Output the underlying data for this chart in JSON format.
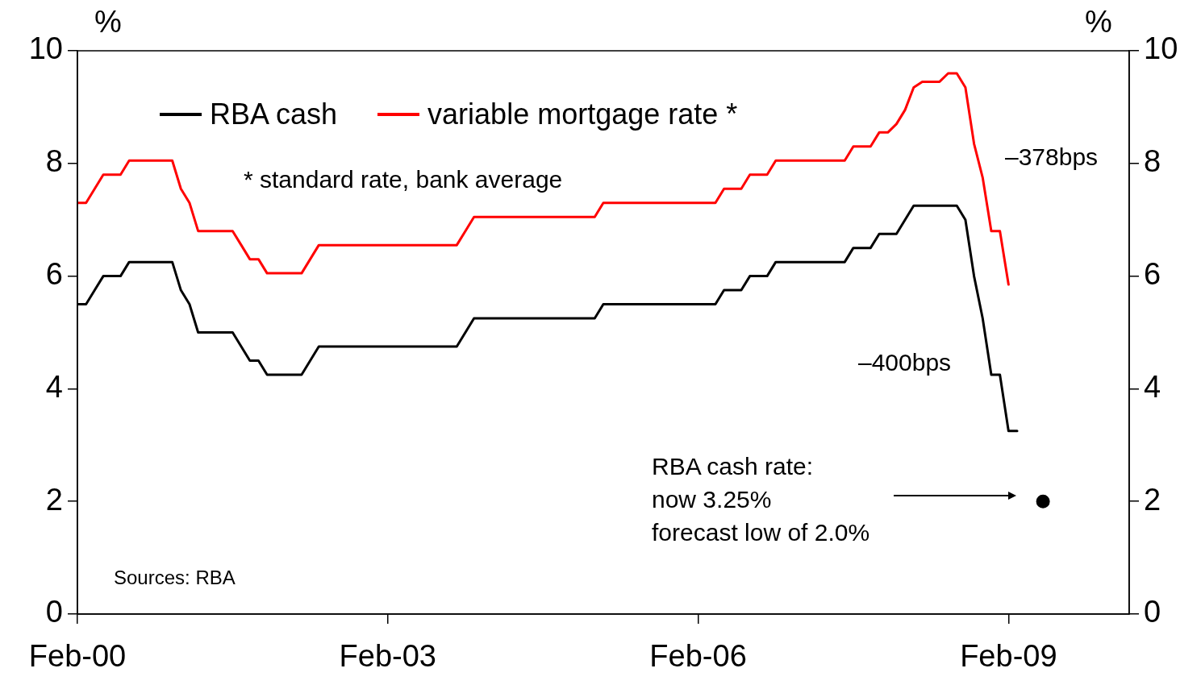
{
  "chart_data": {
    "type": "line",
    "ylabel": "%",
    "y2label": "%",
    "xlim": [
      "2000-02",
      "2010-04"
    ],
    "xticks": [
      {
        "value": "2000-02",
        "label": "Feb-00"
      },
      {
        "value": "2003-02",
        "label": "Feb-03"
      },
      {
        "value": "2006-02",
        "label": "Feb-06"
      },
      {
        "value": "2009-02",
        "label": "Feb-09"
      }
    ],
    "ylim": [
      0,
      10
    ],
    "yticks": [
      0,
      2,
      4,
      6,
      8,
      10
    ],
    "y2lim": [
      0,
      10
    ],
    "y2ticks": [
      0,
      2,
      4,
      6,
      8,
      10
    ],
    "grid": false,
    "legend": "top left",
    "line_style": "solid",
    "series": [
      {
        "name": "RBA cash",
        "color": "#000000",
        "x": [
          "2000-02",
          "2000-03",
          "2000-04",
          "2000-05",
          "2000-07",
          "2000-08",
          "2001-01",
          "2001-02",
          "2001-03",
          "2001-04",
          "2001-08",
          "2001-09",
          "2001-10",
          "2001-11",
          "2001-12",
          "2002-04",
          "2002-05",
          "2002-06",
          "2003-10",
          "2003-11",
          "2003-12",
          "2005-02",
          "2005-03",
          "2006-04",
          "2006-05",
          "2006-07",
          "2006-08",
          "2006-10",
          "2006-11",
          "2007-07",
          "2007-08",
          "2007-10",
          "2007-11",
          "2008-01",
          "2008-02",
          "2008-03",
          "2008-08",
          "2008-09",
          "2008-10",
          "2008-11",
          "2008-12",
          "2009-01",
          "2009-02",
          "2009-03"
        ],
        "values": [
          5.5,
          5.5,
          5.75,
          6.0,
          6.0,
          6.25,
          6.25,
          5.75,
          5.5,
          5.0,
          5.0,
          4.75,
          4.5,
          4.5,
          4.25,
          4.25,
          4.5,
          4.75,
          4.75,
          5.0,
          5.25,
          5.25,
          5.5,
          5.5,
          5.75,
          5.75,
          6.0,
          6.0,
          6.25,
          6.25,
          6.5,
          6.5,
          6.75,
          6.75,
          7.0,
          7.25,
          7.25,
          7.0,
          6.0,
          5.25,
          4.25,
          4.25,
          3.25,
          3.25
        ]
      },
      {
        "name": "variable mortgage rate *",
        "color": "#ff0000",
        "x": [
          "2000-02",
          "2000-03",
          "2000-04",
          "2000-05",
          "2000-07",
          "2000-08",
          "2001-01",
          "2001-02",
          "2001-03",
          "2001-04",
          "2001-08",
          "2001-09",
          "2001-10",
          "2001-11",
          "2001-12",
          "2002-04",
          "2002-05",
          "2002-06",
          "2003-10",
          "2003-11",
          "2003-12",
          "2005-02",
          "2005-03",
          "2006-04",
          "2006-05",
          "2006-07",
          "2006-08",
          "2006-10",
          "2006-11",
          "2007-07",
          "2007-08",
          "2007-10",
          "2007-11",
          "2007-12",
          "2008-01",
          "2008-02",
          "2008-03",
          "2008-04",
          "2008-06",
          "2008-07",
          "2008-08",
          "2008-09",
          "2008-10",
          "2008-11",
          "2008-12",
          "2009-01",
          "2009-02"
        ],
        "values": [
          7.3,
          7.3,
          7.55,
          7.8,
          7.8,
          8.05,
          8.05,
          7.55,
          7.3,
          6.8,
          6.8,
          6.55,
          6.3,
          6.3,
          6.05,
          6.05,
          6.3,
          6.55,
          6.55,
          6.8,
          7.05,
          7.05,
          7.3,
          7.3,
          7.55,
          7.55,
          7.8,
          7.8,
          8.05,
          8.05,
          8.3,
          8.3,
          8.55,
          8.55,
          8.7,
          8.95,
          9.35,
          9.45,
          9.45,
          9.6,
          9.6,
          9.35,
          8.35,
          7.75,
          6.8,
          6.8,
          5.85
        ]
      },
      {
        "type": "scatter",
        "marker": "circle",
        "color": "#000000",
        "x": [
          "2009-06"
        ],
        "values": [
          2.0
        ]
      }
    ],
    "annotations": [
      "* standard rate, bank average",
      "Sources: RBA",
      "–378bps",
      "–400bps",
      "RBA cash rate:\nnow 3.25%\nforecast low of 2.0%"
    ]
  }
}
